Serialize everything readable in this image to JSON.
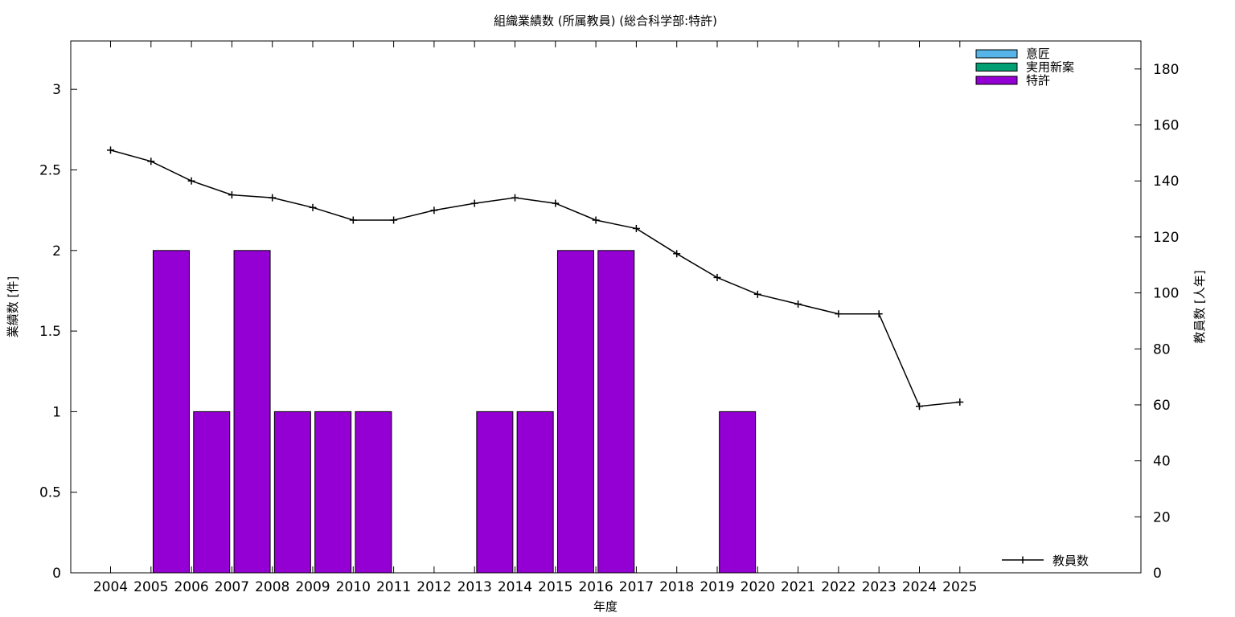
{
  "chart_data": {
    "type": "bar",
    "title": "組織業績数 (所属教員) (総合科学部:特許)",
    "xlabel": "年度",
    "ylabel": "業績数 [件]",
    "y2label": "教員数 [人年]",
    "categories": [
      "2004",
      "2005",
      "2006",
      "2007",
      "2008",
      "2009",
      "2010",
      "2011",
      "2012",
      "2013",
      "2014",
      "2015",
      "2016",
      "2017",
      "2018",
      "2019",
      "2020",
      "2021",
      "2022",
      "2023",
      "2024",
      "2025"
    ],
    "ylim": [
      0,
      3.3
    ],
    "y_ticks": [
      "0",
      "0.5",
      "1",
      "1.5",
      "2",
      "2.5",
      "3"
    ],
    "y2lim": [
      0,
      190
    ],
    "y2_ticks": [
      "0",
      "20",
      "40",
      "60",
      "80",
      "100",
      "120",
      "140",
      "160",
      "180"
    ],
    "legend_position": "top-right",
    "series": [
      {
        "name": "意匠",
        "kind": "bar",
        "color": "#56b4e9",
        "values": [
          0,
          0,
          0,
          0,
          0,
          0,
          0,
          0,
          0,
          0,
          0,
          0,
          0,
          0,
          0,
          0,
          0,
          0,
          0,
          0,
          0,
          0
        ]
      },
      {
        "name": "実用新案",
        "kind": "bar",
        "color": "#009e73",
        "values": [
          0,
          0,
          0,
          0,
          0,
          0,
          0,
          0,
          0,
          0,
          0,
          0,
          0,
          0,
          0,
          0,
          0,
          0,
          0,
          0,
          0,
          0
        ]
      },
      {
        "name": "特許",
        "kind": "bar",
        "color": "#9400d3",
        "values": [
          0,
          2,
          1,
          2,
          1,
          1,
          1,
          0,
          0,
          1,
          1,
          2,
          2,
          0,
          0,
          1,
          0,
          0,
          0,
          0,
          0,
          0
        ]
      },
      {
        "name": "教員数",
        "kind": "line",
        "axis": "y2",
        "color": "#000000",
        "values": [
          151,
          147,
          140,
          135,
          134,
          130.5,
          126,
          126,
          129.5,
          132,
          134,
          132,
          126,
          123,
          114,
          105.5,
          99.5,
          96,
          92.5,
          92.5,
          59.5,
          61
        ]
      }
    ]
  }
}
